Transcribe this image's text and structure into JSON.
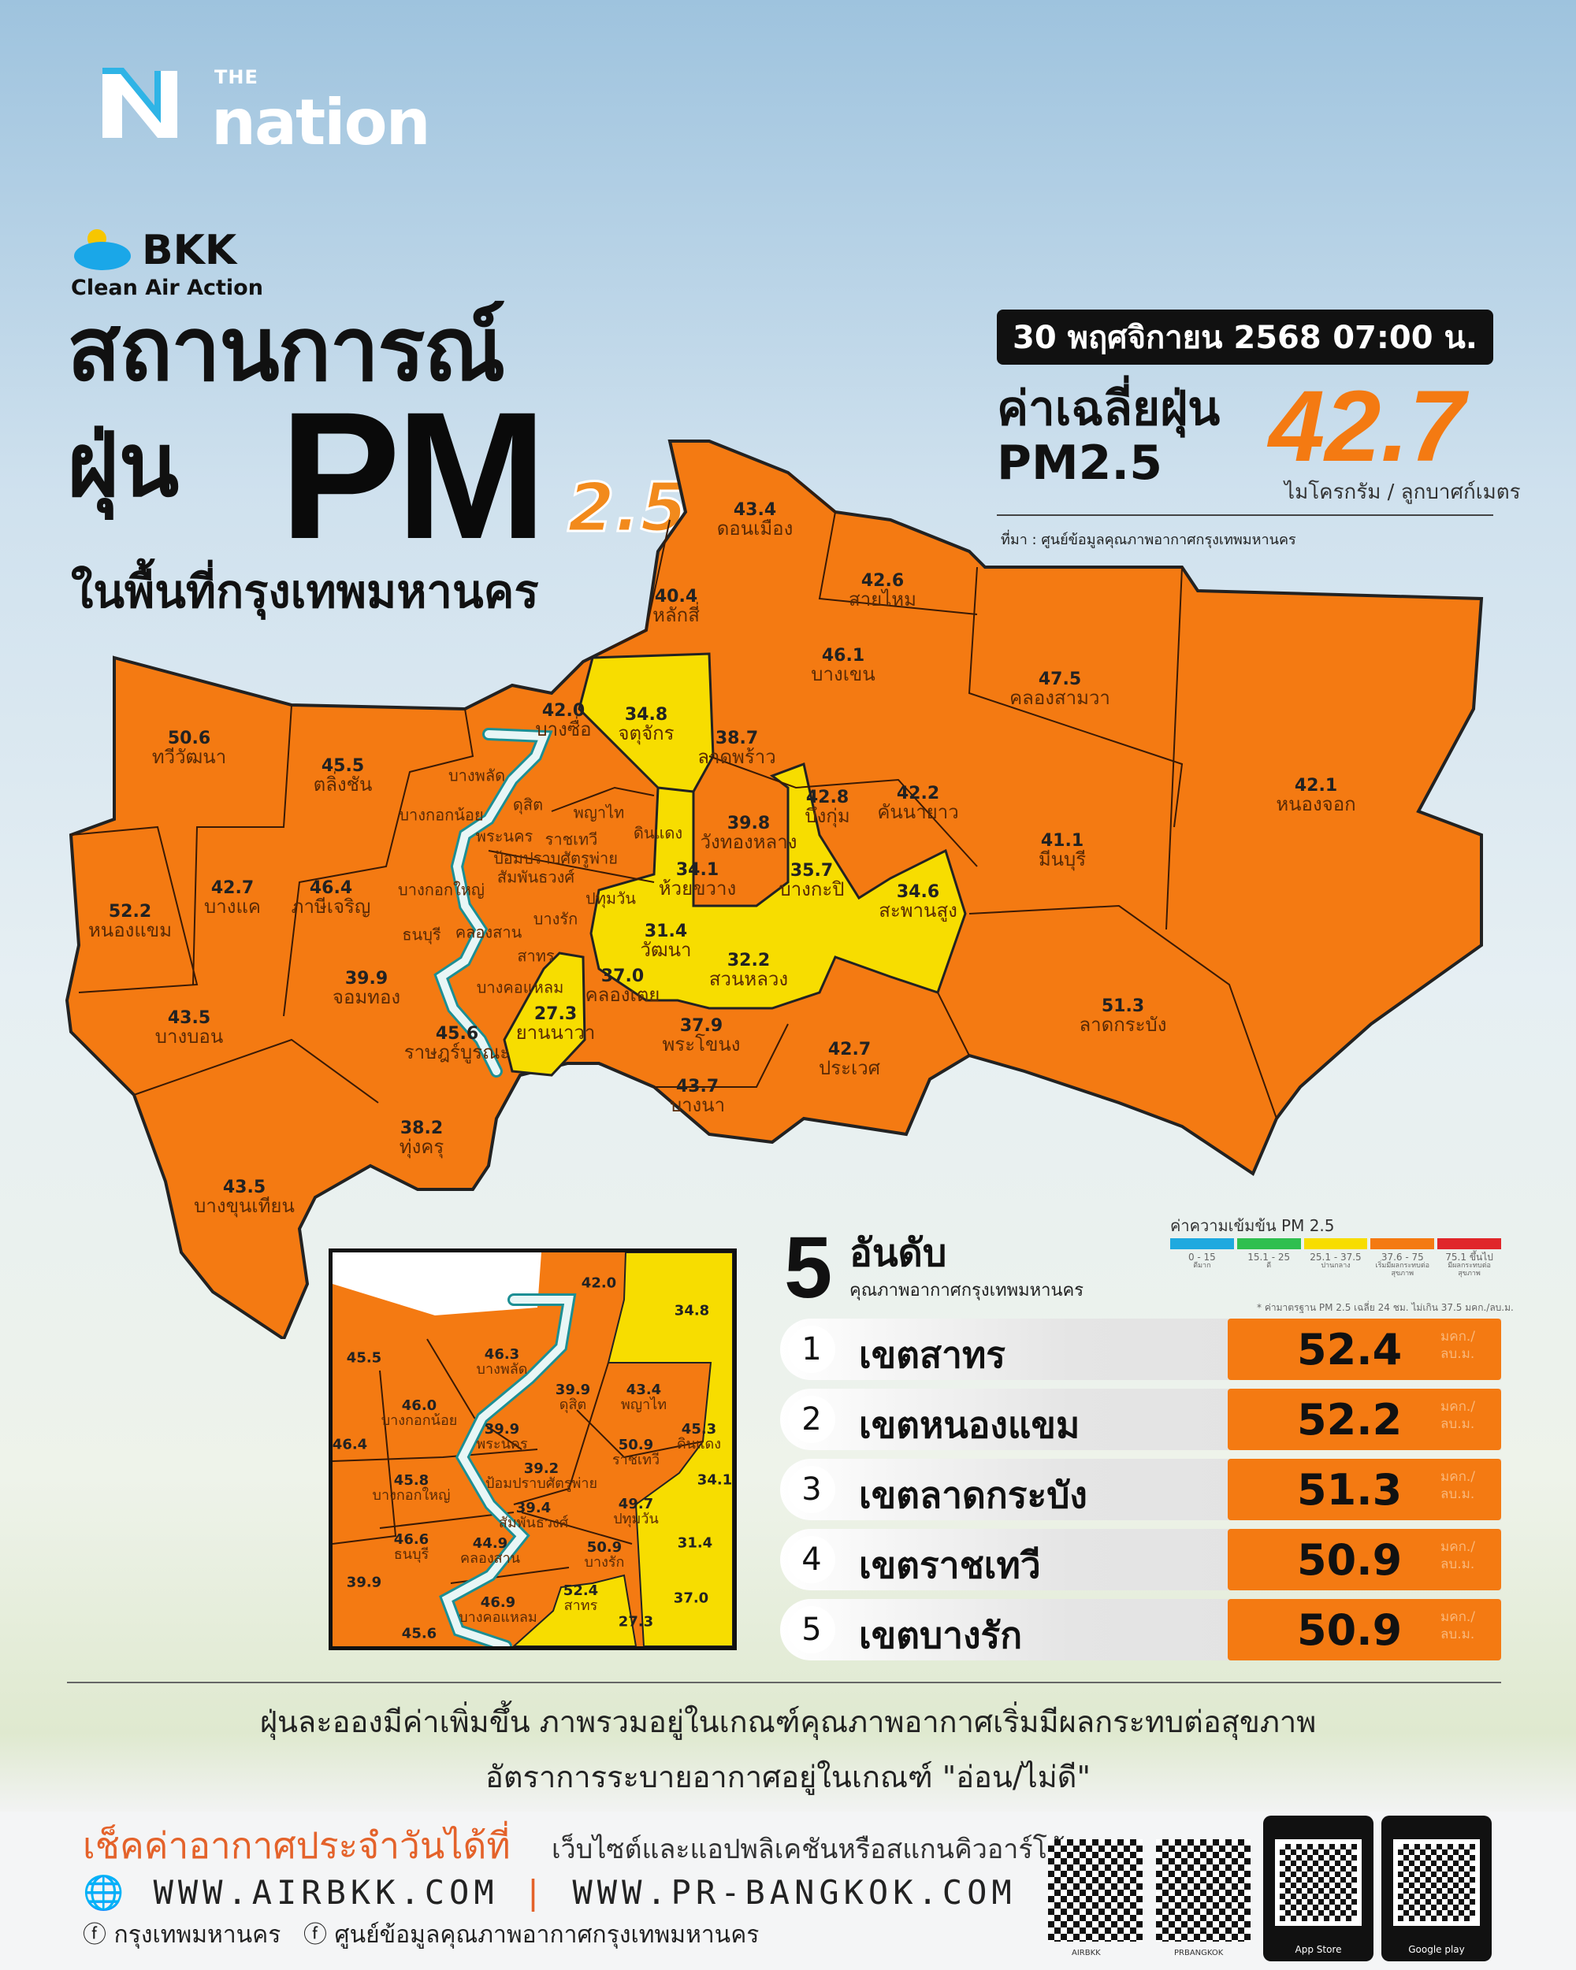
{
  "brand": {
    "the": "THE",
    "name": "nation"
  },
  "campaign": {
    "name": "BKK",
    "subtitle": "Clean Air Action"
  },
  "title": {
    "line1": "สถานการณ์",
    "line2": "ฝุ่น",
    "pm": "PM",
    "pm_sub": "2.5",
    "line3": "ในพื้นที่กรุงเทพมหานคร"
  },
  "header": {
    "date": "30 พฤศจิกายน 2568",
    "time": "07:00 น.",
    "avg_label_1": "ค่าเฉลี่ยฝุ่น",
    "avg_label_2": "PM2.5",
    "avg_value": "42.7",
    "avg_unit": "ไมโครกรัม / ลูกบาศก์เมตร",
    "source": "ที่มา : ศูนย์ข้อมูลคุณภาพอากาศกรุงเทพมหานคร"
  },
  "colors": {
    "orange": "#f47a12",
    "yellow": "#f7dd00",
    "river": "#e8f6f6",
    "good": "#1fa9df",
    "very_good_green": "#2fbf4f",
    "moderate": "#f7dd00",
    "unhealthy_start": "#f47a12",
    "unhealthy": "#e0262a"
  },
  "districts": [
    {
      "name": "ดอนเมือง",
      "value": "43.4"
    },
    {
      "name": "หลักสี่",
      "value": "40.4"
    },
    {
      "name": "สายไหม",
      "value": "42.6"
    },
    {
      "name": "บางเขน",
      "value": "46.1"
    },
    {
      "name": "คลองสามวา",
      "value": "47.5"
    },
    {
      "name": "หนองจอก",
      "value": "42.1"
    },
    {
      "name": "จตุจักร",
      "value": "34.8"
    },
    {
      "name": "บางซื่อ",
      "value": "42.0"
    },
    {
      "name": "ลาดพร้าว",
      "value": "38.7"
    },
    {
      "name": "บึงกุ่ม",
      "value": "42.8"
    },
    {
      "name": "คันนายาว",
      "value": "42.2"
    },
    {
      "name": "มีนบุรี",
      "value": "41.1"
    },
    {
      "name": "ทวีวัฒนา",
      "value": "50.6"
    },
    {
      "name": "ตลิ่งชัน",
      "value": "45.5"
    },
    {
      "name": "บางพลัด",
      "value": ""
    },
    {
      "name": "บางกอกน้อย",
      "value": ""
    },
    {
      "name": "ดุสิต",
      "value": ""
    },
    {
      "name": "พญาไท",
      "value": ""
    },
    {
      "name": "พระนคร",
      "value": ""
    },
    {
      "name": "ราชเทวี",
      "value": ""
    },
    {
      "name": "ดินแดง",
      "value": ""
    },
    {
      "name": "ห้วยขวาง",
      "value": "34.1"
    },
    {
      "name": "วังทองหลาง",
      "value": "39.8"
    },
    {
      "name": "บางกะปิ",
      "value": "35.7"
    },
    {
      "name": "สะพานสูง",
      "value": "34.6"
    },
    {
      "name": "ป้อมปราบศัตรูพ่าย",
      "value": ""
    },
    {
      "name": "สัมพันธวงศ์",
      "value": ""
    },
    {
      "name": "ปทุมวัน",
      "value": ""
    },
    {
      "name": "บางรัก",
      "value": ""
    },
    {
      "name": "บางกอกใหญ่",
      "value": ""
    },
    {
      "name": "ภาษีเจริญ",
      "value": "46.4"
    },
    {
      "name": "บางแค",
      "value": "42.7"
    },
    {
      "name": "หนองแขม",
      "value": "52.2"
    },
    {
      "name": "ธนบุรี",
      "value": ""
    },
    {
      "name": "คลองสาน",
      "value": ""
    },
    {
      "name": "สาทร",
      "value": ""
    },
    {
      "name": "บางคอแหลม",
      "value": ""
    },
    {
      "name": "วัฒนา",
      "value": "31.4"
    },
    {
      "name": "สวนหลวง",
      "value": "32.2"
    },
    {
      "name": "คลองเตย",
      "value": "37.0"
    },
    {
      "name": "ยานนาวา",
      "value": "27.3"
    },
    {
      "name": "จอมทอง",
      "value": "39.9"
    },
    {
      "name": "ราษฎร์บูรณะ",
      "value": "45.6"
    },
    {
      "name": "พระโขนง",
      "value": "37.9"
    },
    {
      "name": "ประเวศ",
      "value": "42.7"
    },
    {
      "name": "ลาดกระบัง",
      "value": "51.3"
    },
    {
      "name": "บางบอน",
      "value": "43.5"
    },
    {
      "name": "บางนา",
      "value": "43.7"
    },
    {
      "name": "ทุ่งครุ",
      "value": "38.2"
    },
    {
      "name": "บางขุนเทียน",
      "value": "43.5"
    }
  ],
  "inset_districts": [
    {
      "name": "",
      "value": "42.0"
    },
    {
      "name": "",
      "value": "34.8"
    },
    {
      "name": "",
      "value": "45.5"
    },
    {
      "name": "บางพลัด",
      "value": "46.3"
    },
    {
      "name": "บางกอกน้อย",
      "value": "46.0"
    },
    {
      "name": "ดุสิต",
      "value": "39.9"
    },
    {
      "name": "พญาไท",
      "value": "43.4"
    },
    {
      "name": "ดินแดง",
      "value": "45.3"
    },
    {
      "name": "พระนคร",
      "value": "39.9"
    },
    {
      "name": "ป้อมปราบศัตรูพ่าย",
      "value": "39.2"
    },
    {
      "name": "ราชเทวี",
      "value": "50.9"
    },
    {
      "name": "",
      "value": "34.1"
    },
    {
      "name": "บางกอกใหญ่",
      "value": "45.8"
    },
    {
      "name": "",
      "value": "46.4"
    },
    {
      "name": "สัมพันธวงศ์",
      "value": "39.4"
    },
    {
      "name": "ปทุมวัน",
      "value": "49.7"
    },
    {
      "name": "บางรัก",
      "value": "50.9"
    },
    {
      "name": "คลองสาน",
      "value": "44.9"
    },
    {
      "name": "ธนบุรี",
      "value": "46.6"
    },
    {
      "name": "สาทร",
      "value": "52.4"
    },
    {
      "name": "",
      "value": "39.9"
    },
    {
      "name": "บางคอแหลม",
      "value": "46.9"
    },
    {
      "name": "",
      "value": "27.3"
    },
    {
      "name": "",
      "value": "31.4"
    },
    {
      "name": "",
      "value": "37.0"
    },
    {
      "name": "",
      "value": "45.6"
    }
  ],
  "top5": {
    "number": "5",
    "title": "อันดับ",
    "subtitle": "คุณภาพอากาศกรุงเทพมหานคร",
    "unit_1": "มคก./",
    "unit_2": "ลบ.ม.",
    "items": [
      {
        "rank": "1",
        "name": "เขตสาทร",
        "value": "52.4"
      },
      {
        "rank": "2",
        "name": "เขตหนองแขม",
        "value": "52.2"
      },
      {
        "rank": "3",
        "name": "เขตลาดกระบัง",
        "value": "51.3"
      },
      {
        "rank": "4",
        "name": "เขตราชเทวี",
        "value": "50.9"
      },
      {
        "rank": "5",
        "name": "เขตบางรัก",
        "value": "50.9"
      }
    ]
  },
  "legend": {
    "title": "ค่าความเข้มข้น PM 2.5",
    "note": "* ค่ามาตรฐาน PM 2.5 เฉลี่ย 24 ชม. ไม่เกิน 37.5 มคก./ลบ.ม.",
    "items": [
      {
        "range": "0 - 15",
        "label": "ดีมาก",
        "color": "#1fa9df"
      },
      {
        "range": "15.1 - 25",
        "label": "ดี",
        "color": "#2fbf4f"
      },
      {
        "range": "25.1 - 37.5",
        "label": "ปานกลาง",
        "color": "#f7dd00"
      },
      {
        "range": "37.6 - 75",
        "label": "เริ่มมีผลกระทบต่อสุขภาพ",
        "color": "#f47a12"
      },
      {
        "range": "75.1 ขึ้นไป",
        "label": "มีผลกระทบต่อสุขภาพ",
        "color": "#e0262a"
      }
    ]
  },
  "summary": {
    "line1": "ฝุ่นละอองมีค่าเพิ่มขึ้น ภาพรวมอยู่ในเกณฑ์คุณภาพอากาศเริ่มมีผลกระทบต่อสุขภาพ",
    "line2": "อัตราการระบายอากาศอยู่ในเกณฑ์ \"อ่อน/ไม่ดี\""
  },
  "footer": {
    "check": "เช็คค่าอากาศประจำวันได้ที่",
    "check_sub": "เว็บไซต์และแอปพลิเคชันหรือสแกนคิวอาร์โค้ด",
    "site1": "WWW.AIRBKK.COM",
    "site2": "WWW.PR-BANGKOK.COM",
    "fb1": "กรุงเทพมหานคร",
    "fb2": "ศูนย์ข้อมูลคุณภาพอากาศกรุงเทพมหานคร",
    "qr1": "AIRBKK",
    "qr2": "PRBANGKOK",
    "app1": "App Store",
    "app2": "Google play",
    "app_label": "AIRBKK"
  }
}
